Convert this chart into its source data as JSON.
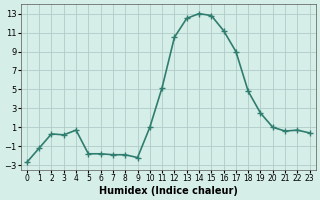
{
  "x": [
    0,
    1,
    2,
    3,
    4,
    5,
    6,
    7,
    8,
    9,
    10,
    11,
    12,
    13,
    14,
    15,
    16,
    17,
    18,
    19,
    20,
    21,
    22,
    23
  ],
  "y": [
    -2.7,
    -1.2,
    0.3,
    0.2,
    0.7,
    -1.8,
    -1.8,
    -1.9,
    -1.9,
    -2.2,
    1.0,
    5.2,
    10.5,
    12.5,
    13.0,
    12.8,
    11.2,
    9.0,
    4.8,
    2.5,
    1.0,
    0.6,
    0.7,
    0.4
  ],
  "xlabel": "Humidex (Indice chaleur)",
  "line_color": "#2e7d6e",
  "marker_color": "#2e7d6e",
  "bg_color": "#d6eee8",
  "grid_color": "#b0ccc8",
  "xlim": [
    -0.5,
    23.5
  ],
  "ylim": [
    -3.5,
    14.0
  ],
  "yticks": [
    -3,
    -1,
    1,
    3,
    5,
    7,
    9,
    11,
    13
  ],
  "xtick_labels": [
    "0",
    "1",
    "2",
    "3",
    "4",
    "5",
    "6",
    "7",
    "8",
    "9",
    "10",
    "11",
    "12",
    "13",
    "14",
    "15",
    "16",
    "17",
    "18",
    "19",
    "20",
    "21",
    "22",
    "23"
  ]
}
